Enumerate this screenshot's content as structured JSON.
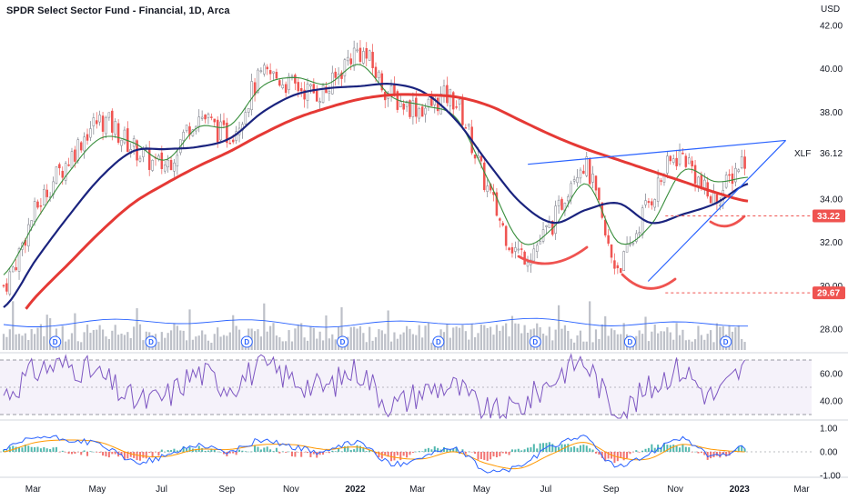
{
  "title": "SPDR Select Sector Fund - Financial, 1D, Arca",
  "currency": "USD",
  "symbol": "XLF",
  "colors": {
    "up": "#26a69a",
    "down": "#ef5350",
    "candle_gray": "#787b86",
    "sma200": "#e53935",
    "sma50": "#1a237e",
    "ema20": "#388e3c",
    "trendline": "#2962ff",
    "rsi": "#7e57c2",
    "macd": "#2962ff",
    "signal": "#ff9800",
    "volume_ma": "#2962ff",
    "volume": "#b2b5be"
  },
  "axes": {
    "price_ticks": [
      "42.00",
      "40.00",
      "38.00",
      "36.12",
      "34.00",
      "32.00",
      "30.00",
      "28.00"
    ],
    "rsi_ticks": [
      "60.00",
      "40.00"
    ],
    "macd_ticks": [
      "1.00",
      "0.00",
      "-1.00"
    ],
    "x_ticks": [
      "Mar",
      "May",
      "Jul",
      "Sep",
      "Nov",
      "2022",
      "Mar",
      "May",
      "Jul",
      "Sep",
      "Nov",
      "2023",
      "Mar"
    ],
    "x_bold": [
      "2022",
      "2023"
    ]
  },
  "price_labels": [
    {
      "value": "33.22"
    },
    {
      "value": "29.67"
    }
  ],
  "dividend_marker": "D",
  "chart_data": {
    "type": "line",
    "ylim": [
      27.4,
      42.6
    ],
    "indicators": [
      "SMA 200",
      "SMA 50",
      "EMA 20",
      "Volume",
      "RSI",
      "MACD"
    ],
    "price_series": {
      "x": [
        "2021-02",
        "2021-03",
        "2021-04",
        "2021-05",
        "2021-06",
        "2021-07",
        "2021-08",
        "2021-09",
        "2021-10",
        "2021-11",
        "2021-12",
        "2022-01",
        "2022-02",
        "2022-03",
        "2022-04",
        "2022-05",
        "2022-06",
        "2022-07",
        "2022-08",
        "2022-09",
        "2022-10",
        "2022-11",
        "2022-12",
        "2023-01"
      ],
      "close": [
        30.0,
        33.5,
        35.8,
        37.6,
        36.4,
        35.6,
        37.8,
        37.0,
        39.6,
        39.2,
        39.0,
        40.8,
        38.8,
        38.2,
        38.5,
        34.5,
        31.5,
        32.8,
        35.6,
        31.0,
        33.8,
        36.0,
        34.0,
        35.9
      ]
    },
    "sma200": [
      27.8,
      29.5,
      31.0,
      32.5,
      33.8,
      34.7,
      35.5,
      36.2,
      37.0,
      37.7,
      38.2,
      38.6,
      38.8,
      38.8,
      38.7,
      38.3,
      37.6,
      36.9,
      36.3,
      35.8,
      35.3,
      34.8,
      34.3,
      33.9
    ],
    "sma50": [
      29.0,
      31.2,
      33.2,
      35.0,
      36.2,
      36.3,
      36.4,
      36.8,
      38.0,
      38.8,
      39.1,
      39.2,
      39.3,
      38.9,
      37.6,
      35.6,
      33.8,
      32.9,
      33.5,
      33.8,
      32.9,
      33.3,
      33.8,
      34.7
    ],
    "ema20": [
      30.5,
      33.0,
      35.2,
      36.8,
      36.6,
      35.8,
      37.3,
      37.4,
      39.2,
      39.6,
      39.3,
      40.2,
      38.7,
      38.3,
      37.7,
      34.8,
      32.0,
      32.7,
      34.7,
      32.0,
      32.8,
      35.3,
      34.8,
      35.0
    ],
    "rsi": [
      45,
      62,
      66,
      58,
      41,
      43,
      60,
      52,
      64,
      56,
      50,
      62,
      38,
      47,
      50,
      32,
      36,
      55,
      68,
      34,
      48,
      63,
      44,
      64
    ],
    "macd": [
      0.1,
      0.6,
      0.5,
      0.3,
      -0.4,
      -0.2,
      0.3,
      0.0,
      0.5,
      0.2,
      0.0,
      0.4,
      -0.5,
      -0.2,
      0.1,
      -0.8,
      -0.6,
      0.2,
      0.6,
      -0.6,
      -0.1,
      0.6,
      -0.2,
      0.2
    ],
    "signal": [
      0.0,
      0.4,
      0.5,
      0.4,
      -0.1,
      -0.2,
      0.1,
      0.1,
      0.3,
      0.3,
      0.1,
      0.2,
      -0.2,
      -0.3,
      0.0,
      -0.5,
      -0.7,
      -0.1,
      0.4,
      -0.2,
      -0.3,
      0.3,
      0.1,
      0.0
    ],
    "rising_wedge_lines": {
      "upper": {
        "from": [
          "2022-06",
          35.6
        ],
        "to": [
          "2023-02",
          36.7
        ]
      },
      "lower": {
        "from": [
          "2022-10",
          30.2
        ],
        "to": [
          "2023-02",
          36.7
        ]
      }
    },
    "levels": [
      33.22,
      29.67
    ]
  }
}
